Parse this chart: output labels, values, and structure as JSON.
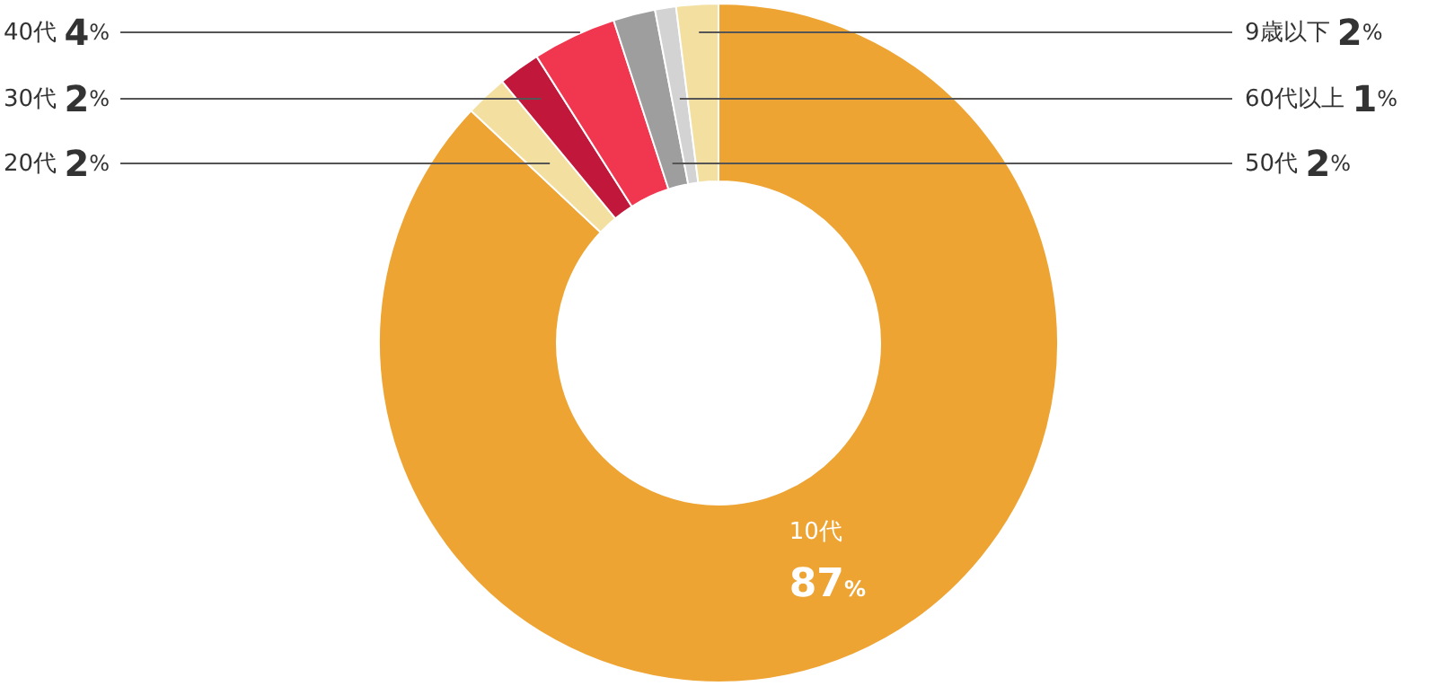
{
  "chart_data": {
    "type": "donut",
    "categories": [
      "10代",
      "20代",
      "30代",
      "40代",
      "50代",
      "60代以上",
      "9歳以下"
    ],
    "values": [
      87,
      2,
      2,
      4,
      2,
      1,
      2
    ],
    "colors": [
      "#eea433",
      "#f3dfa0",
      "#c0173b",
      "#f0374f",
      "#9e9e9e",
      "#d3d3d3",
      "#f3dfa0"
    ],
    "value_labels": [
      "87%",
      "2%",
      "2%",
      "4%",
      "2%",
      "1%",
      "2%"
    ]
  }
}
